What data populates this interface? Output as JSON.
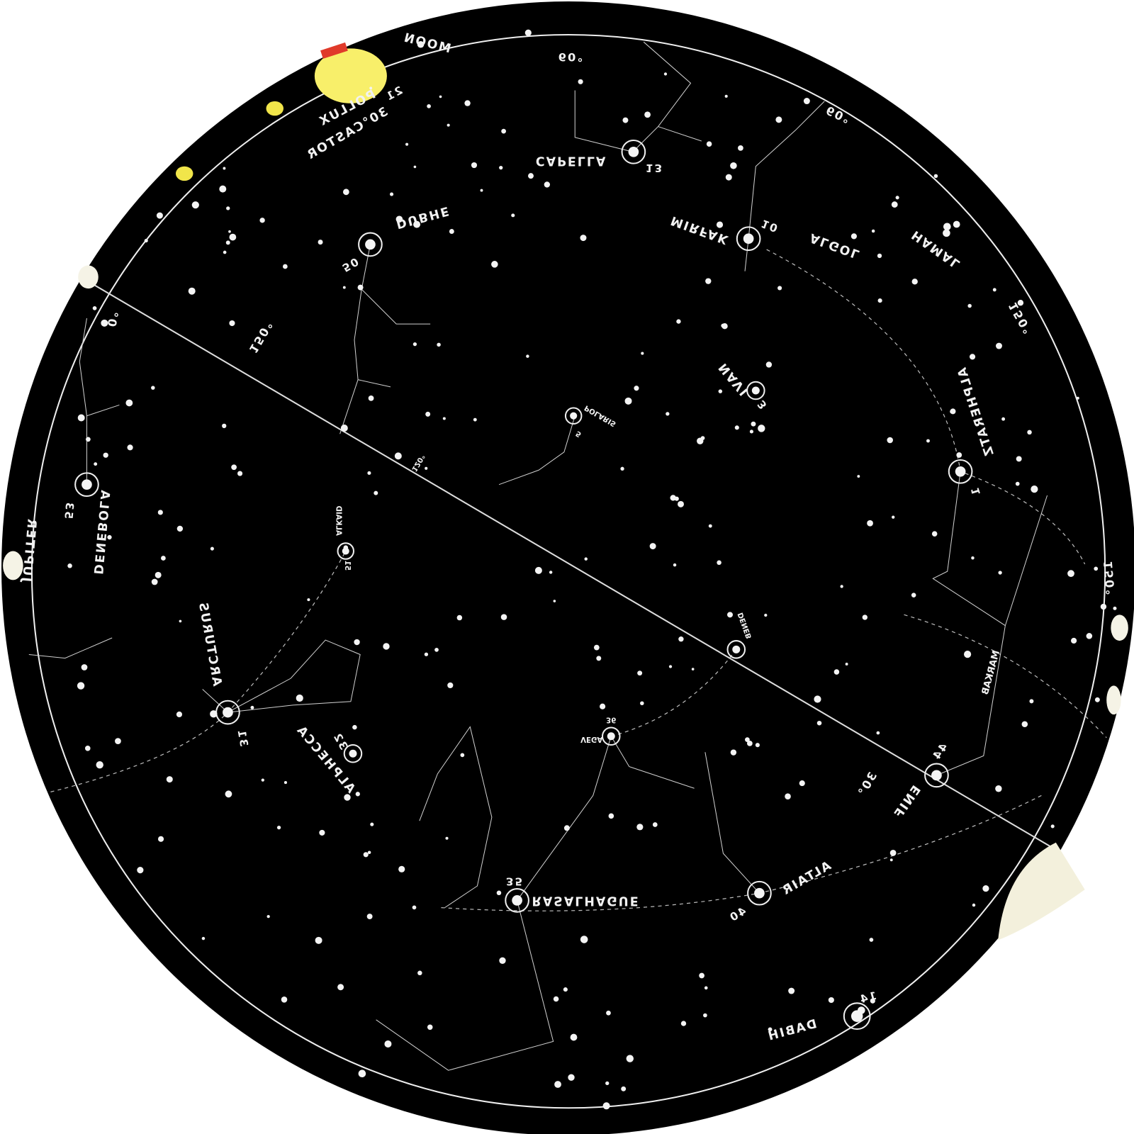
{
  "labels": [
    {
      "name": "MOON"
    },
    {
      "name": "POLLUX",
      "number": "21"
    },
    {
      "name": "30°CASTOR"
    },
    {
      "name": "CAPELLA",
      "number": "13"
    },
    {
      "name": "MIRFAK",
      "number": "10"
    },
    {
      "name": "ALGOL"
    },
    {
      "name": "HAMAL"
    },
    {
      "name": "ALPHERATZ",
      "number": "1"
    },
    {
      "name": "NAVI",
      "number": "3"
    },
    {
      "name": "POLARIS",
      "number": "5"
    },
    {
      "name": "DUBHE",
      "number": "50"
    },
    {
      "name": "DENEBOLA",
      "number": "53"
    },
    {
      "name": "JUPITER"
    },
    {
      "name": "ALKAID",
      "number": "51"
    },
    {
      "name": "ARCTURUS",
      "number": "31"
    },
    {
      "name": "ALPHECCA",
      "number": "32"
    },
    {
      "name": "VEGA",
      "number": "36"
    },
    {
      "name": "DENEB"
    },
    {
      "name": "RASALHAGUE",
      "number": "35"
    },
    {
      "name": "ALTAIR",
      "number": "40"
    },
    {
      "name": "ENIF",
      "number": "44"
    },
    {
      "name": "MARKAB"
    },
    {
      "name": "DABIH",
      "number": "14"
    }
  ],
  "degrees": [
    "60°",
    "60°",
    "150°",
    "0°",
    "150°",
    "120°",
    "30°",
    "150°"
  ]
}
